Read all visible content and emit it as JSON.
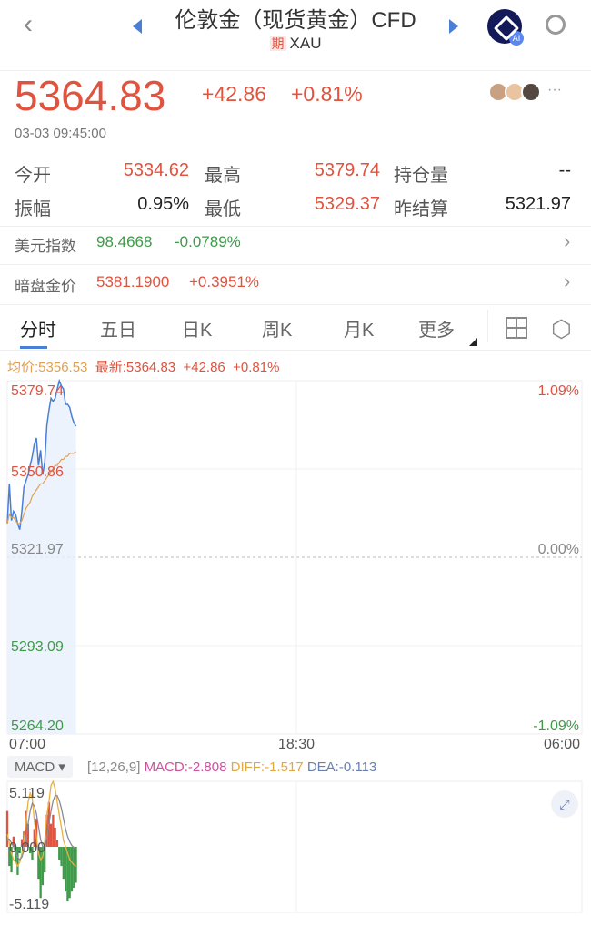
{
  "header": {
    "title": "伦敦金（现货黄金）CFD",
    "badge": "期",
    "symbol": "XAU",
    "ai_label": "AI"
  },
  "quote": {
    "price": "5364.83",
    "change": "+42.86",
    "change_pct": "+0.81%",
    "timestamp": "03-03 09:45:00",
    "more": "···"
  },
  "stats": [
    [
      {
        "label": "今开",
        "value": "5334.62",
        "color": "red"
      },
      {
        "label": "最高",
        "value": "5379.74",
        "color": "red"
      },
      {
        "label": "持仓量",
        "value": "--",
        "color": "dark"
      }
    ],
    [
      {
        "label": "振幅",
        "value": "0.95%",
        "color": "dark"
      },
      {
        "label": "最低",
        "value": "5329.37",
        "color": "red"
      },
      {
        "label": "昨结算",
        "value": "5321.97",
        "color": "dark"
      }
    ]
  ],
  "links": [
    {
      "label": "美元指数",
      "value": "98.4668",
      "change": "-0.0789%",
      "color": "green"
    },
    {
      "label": "暗盘金价",
      "value": "5381.1900",
      "change": "+0.3951%",
      "color": "red"
    }
  ],
  "tabs": [
    "分时",
    "五日",
    "日K",
    "周K",
    "月K",
    "更多"
  ],
  "active_tab": 0,
  "chart_info": {
    "avg": "均价:5356.53",
    "latest": "最新:5364.83",
    "change": "+42.86",
    "pct": "+0.81%"
  },
  "colors": {
    "up": "#e0533f",
    "down": "#3f9a4a",
    "price_line": "#4a7fd6",
    "avg_line": "#e0a050",
    "diff": "#e8b040",
    "dea": "#8a8a9a",
    "macd": "#d050a0",
    "accent": "#4a7fd6"
  },
  "chart_data": [
    {
      "type": "line",
      "y_labels_left": [
        "5379.74",
        "5350.86",
        "5321.97",
        "5293.09",
        "5264.20"
      ],
      "y_labels_right": [
        "1.09%",
        "",
        "0.00%",
        "",
        "-1.09%"
      ],
      "x_labels": [
        "07:00",
        "18:30",
        "06:00"
      ],
      "ylim": [
        5264.2,
        5379.74
      ],
      "xlim": [
        "07:00",
        "06:00"
      ],
      "reference": 5321.97,
      "x": [
        "07:00",
        "07:05",
        "07:10",
        "07:15",
        "07:20",
        "07:25",
        "07:30",
        "07:35",
        "07:40",
        "07:45",
        "07:50",
        "07:55",
        "08:00",
        "08:05",
        "08:10",
        "08:15",
        "08:20",
        "08:25",
        "08:30",
        "08:35",
        "08:40",
        "08:45",
        "08:50",
        "08:55",
        "09:00",
        "09:05",
        "09:10",
        "09:15",
        "09:20",
        "09:25",
        "09:30",
        "09:35",
        "09:40",
        "09:45"
      ],
      "series": [
        {
          "values": [
            5333,
            5346,
            5334,
            5337,
            5336,
            5333,
            5331,
            5337,
            5345,
            5347,
            5349,
            5352,
            5355,
            5359,
            5361,
            5352,
            5357,
            5349,
            5353,
            5365,
            5370,
            5374,
            5373,
            5374,
            5377,
            5379.7,
            5378,
            5377,
            5372,
            5372,
            5371,
            5368,
            5366,
            5364.83
          ]
        },
        {
          "values": [
            5333,
            5336,
            5335,
            5335,
            5334,
            5333,
            5333,
            5334,
            5336,
            5338,
            5339,
            5340,
            5342,
            5343,
            5344,
            5345,
            5346,
            5346,
            5347,
            5348,
            5349,
            5350,
            5351,
            5352,
            5352,
            5353,
            5354,
            5354,
            5355,
            5355,
            5356,
            5356,
            5356,
            5356.53
          ]
        }
      ]
    },
    {
      "type": "bar",
      "title": "MACD",
      "params": "[12,26,9]",
      "macd_label": "MACD:-2.808",
      "diff_label": "DIFF:-1.517",
      "dea_label": "DEA:-0.113",
      "y_labels": [
        "5.119",
        "0.000",
        "-5.119"
      ],
      "ylim": [
        -5.119,
        5.119
      ],
      "series": [
        {
          "name": "MACD",
          "values": [
            2.8,
            -1.5,
            -2,
            0.8,
            -1.2,
            -2.2,
            -0.5,
            0.6,
            1.2,
            2.8,
            1.8,
            -0.5,
            -1,
            1.4,
            2.2,
            -2.5,
            -4,
            -3,
            -2,
            2.5,
            3.5,
            1.8,
            2.5,
            1.5,
            0.5,
            -1,
            -1.5,
            -2.5,
            -3.5,
            -4.2,
            -4,
            -3.5,
            -3.2,
            -2.808
          ]
        },
        {
          "name": "DIFF",
          "values": [
            1,
            0.3,
            -0.5,
            -1,
            -1.2,
            -1.5,
            -1.2,
            -0.5,
            0.5,
            2,
            3.5,
            4.2,
            3.8,
            2,
            0.8,
            -0.5,
            -1,
            -0.8,
            0.5,
            2.5,
            3.5,
            4.8,
            5.1,
            4.5,
            3.5,
            2.5,
            1.5,
            0.5,
            0,
            -0.5,
            -1,
            -1.2,
            -1.4,
            -1.517
          ]
        },
        {
          "name": "DEA",
          "values": [
            0.5,
            0.6,
            0.3,
            0,
            -0.4,
            -0.8,
            -1,
            -0.8,
            -0.3,
            0.6,
            1.8,
            2.8,
            3.4,
            3.2,
            2.6,
            1.6,
            0.6,
            0,
            0,
            0.8,
            1.8,
            2.8,
            3.6,
            4,
            4,
            3.6,
            3,
            2.2,
            1.4,
            0.8,
            0.4,
            0.1,
            -0.05,
            -0.113
          ]
        }
      ]
    }
  ]
}
